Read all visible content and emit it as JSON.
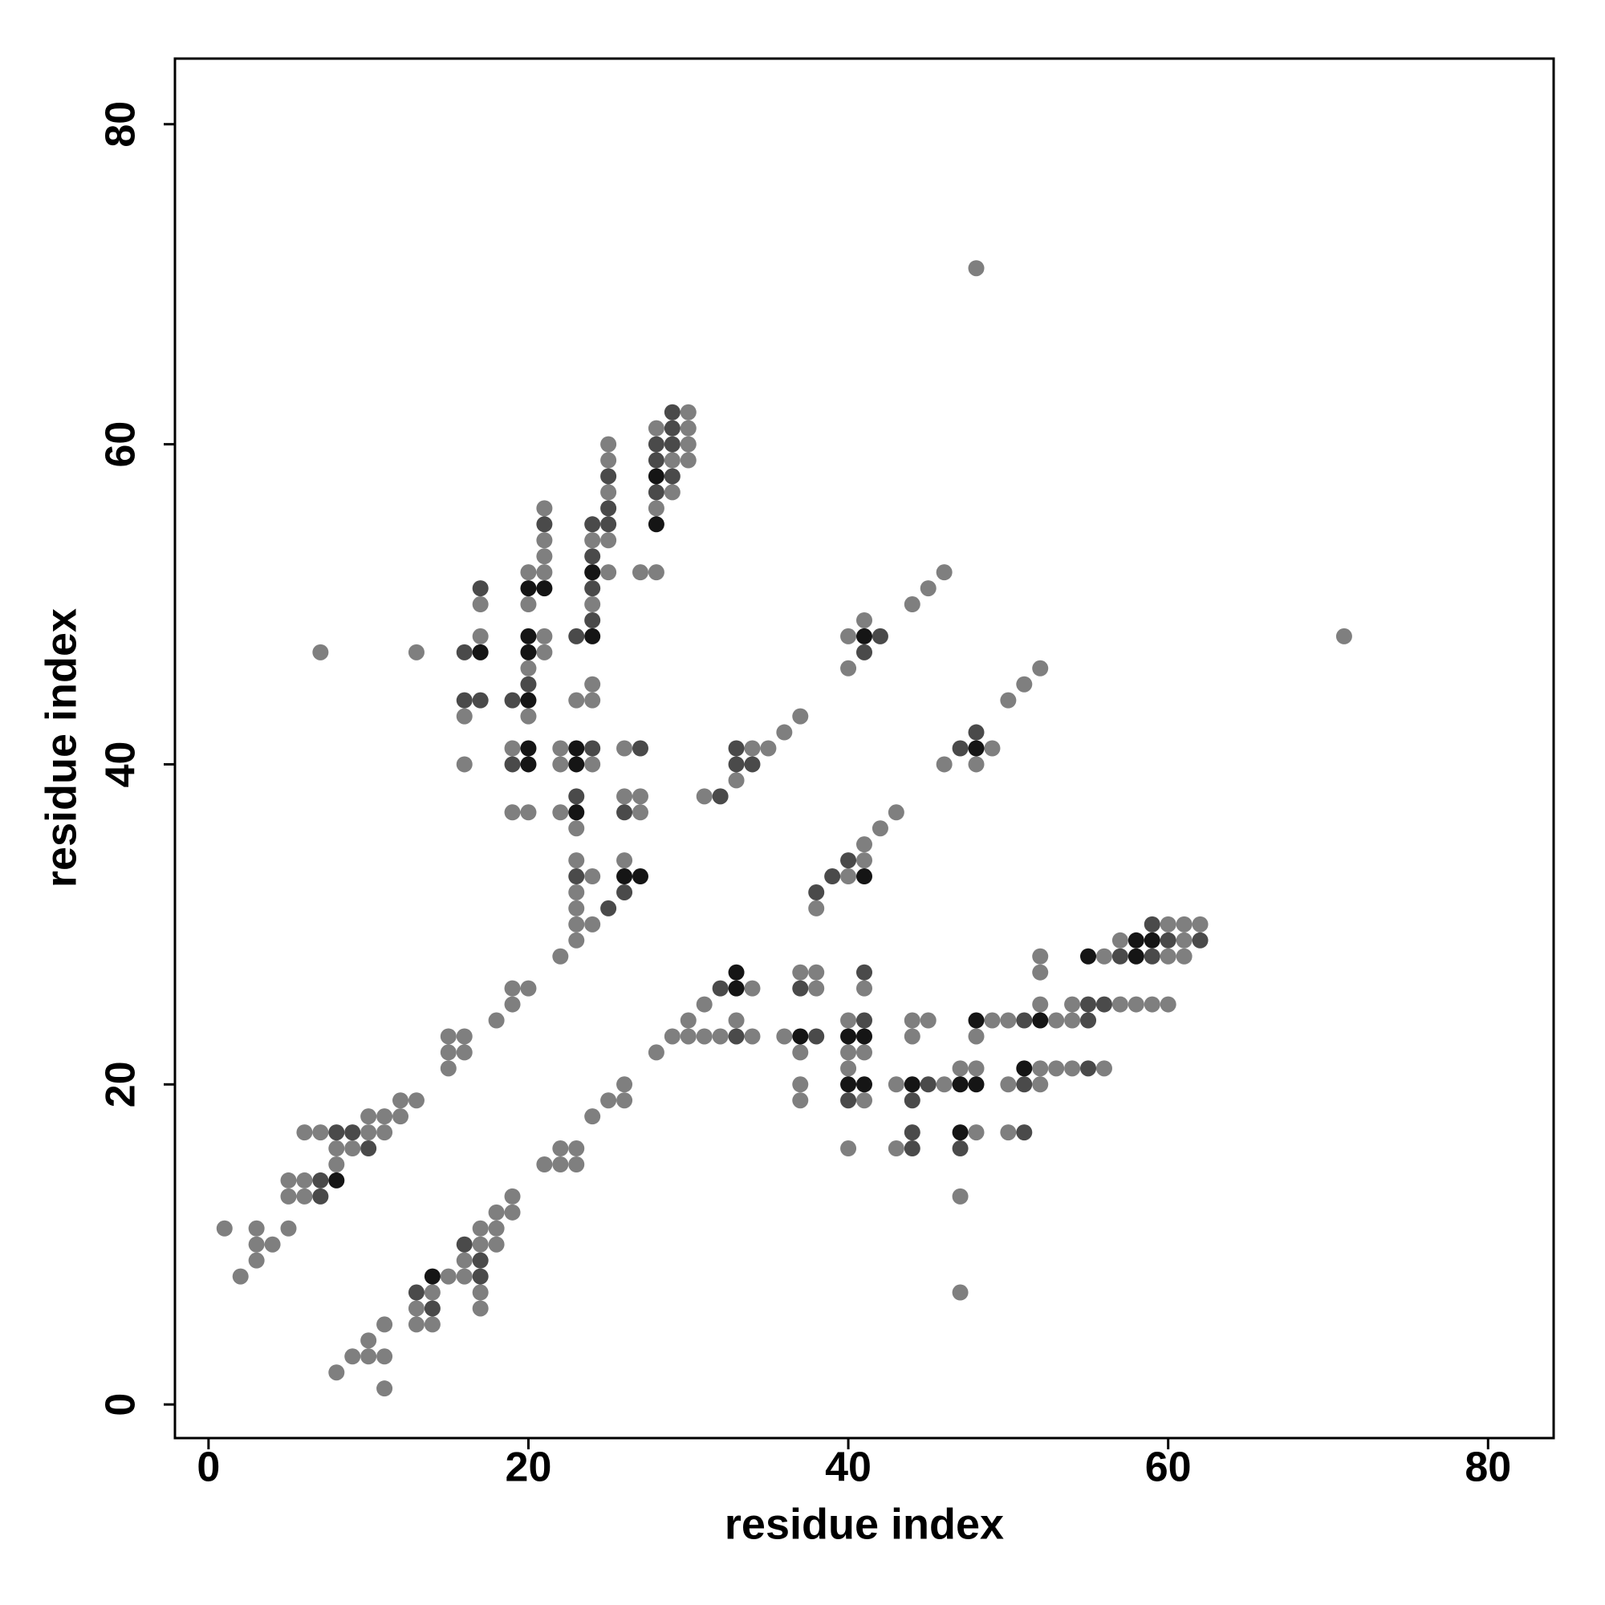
{
  "chart_data": {
    "type": "scatter",
    "xlabel": "residue index",
    "ylabel": "residue index",
    "xlim": [
      -2.1,
      84.1
    ],
    "ylim": [
      -2.1,
      84.1
    ],
    "xticks": [
      0,
      20,
      40,
      60,
      80
    ],
    "yticks": [
      0,
      20,
      40,
      60,
      80
    ],
    "grid": false,
    "series": [
      {
        "color": "#7f7f7f",
        "x": [
          1,
          2,
          3,
          3,
          3,
          4,
          5,
          5,
          5,
          6,
          6,
          6,
          7,
          7,
          8,
          8,
          9,
          10,
          10,
          11,
          11,
          12,
          12,
          13,
          13,
          15,
          15,
          15,
          16,
          16,
          18,
          19,
          19,
          20,
          22,
          23,
          23,
          23,
          23,
          23,
          23,
          23,
          24,
          24,
          24,
          24,
          24,
          24,
          24,
          25,
          25,
          25,
          25,
          25,
          26,
          26,
          26,
          27,
          27,
          27,
          28,
          28,
          28,
          29,
          29,
          30,
          30,
          30,
          30,
          16,
          16,
          17,
          17,
          19,
          19,
          20,
          20,
          20,
          20,
          20,
          21,
          21,
          21,
          21,
          21,
          21,
          22,
          22,
          22,
          31,
          33,
          34,
          35,
          36,
          37,
          40,
          40,
          41,
          44,
          45,
          46,
          38,
          40,
          41,
          41,
          42,
          43,
          46,
          48,
          49,
          50,
          51,
          52,
          48,
          71,
          8,
          9,
          10,
          10,
          11,
          11,
          11,
          13,
          13,
          14,
          14,
          15,
          16,
          16,
          17,
          17,
          17,
          17,
          18,
          18,
          18,
          19,
          19,
          21,
          22,
          22,
          23,
          23,
          24,
          25,
          26,
          26,
          28,
          29,
          30,
          30,
          31,
          31,
          32,
          33,
          34,
          34,
          36,
          37,
          37,
          37,
          37,
          38,
          38,
          40,
          40,
          40,
          40,
          41,
          41,
          41,
          43,
          43,
          44,
          44,
          45,
          46,
          47,
          47,
          47,
          48,
          48,
          48,
          49,
          50,
          50,
          50,
          52,
          52,
          52,
          52,
          52,
          53,
          53,
          54,
          54,
          54,
          56,
          56,
          57,
          57,
          58,
          59,
          60,
          60,
          60,
          61,
          61,
          61,
          62
        ],
        "values": [
          11,
          8,
          11,
          10,
          9,
          10,
          11,
          14,
          13,
          17,
          14,
          13,
          17,
          47,
          16,
          15,
          16,
          18,
          17,
          18,
          17,
          19,
          18,
          19,
          47,
          23,
          22,
          21,
          23,
          22,
          24,
          26,
          25,
          26,
          28,
          29,
          30,
          31,
          32,
          34,
          36,
          44,
          30,
          33,
          40,
          44,
          45,
          50,
          54,
          52,
          54,
          57,
          59,
          60,
          34,
          38,
          41,
          37,
          38,
          52,
          52,
          56,
          61,
          57,
          59,
          59,
          60,
          61,
          62,
          43,
          40,
          50,
          48,
          41,
          37,
          52,
          50,
          46,
          43,
          37,
          56,
          54,
          53,
          52,
          48,
          47,
          41,
          40,
          37,
          38,
          39,
          41,
          41,
          42,
          43,
          48,
          46,
          49,
          50,
          51,
          52,
          31,
          33,
          34,
          35,
          36,
          37,
          40,
          40,
          41,
          44,
          45,
          46,
          71,
          48,
          2,
          3,
          3,
          4,
          3,
          1,
          5,
          6,
          5,
          7,
          5,
          8,
          9,
          8,
          11,
          10,
          7,
          6,
          12,
          11,
          10,
          13,
          12,
          15,
          16,
          15,
          16,
          15,
          18,
          19,
          20,
          19,
          22,
          23,
          24,
          23,
          25,
          23,
          23,
          24,
          26,
          23,
          23,
          27,
          22,
          20,
          19,
          27,
          26,
          24,
          22,
          21,
          16,
          26,
          22,
          19,
          20,
          16,
          24,
          23,
          24,
          20,
          21,
          13,
          7,
          23,
          21,
          17,
          24,
          24,
          20,
          17,
          28,
          27,
          25,
          21,
          20,
          24,
          21,
          25,
          24,
          21,
          28,
          21,
          29,
          25,
          25,
          25,
          30,
          28,
          25,
          30,
          29,
          28,
          30
        ]
      },
      {
        "color": "#4a4a4a",
        "x": [
          7,
          7,
          8,
          9,
          10,
          23,
          23,
          23,
          24,
          24,
          24,
          24,
          24,
          25,
          25,
          25,
          25,
          26,
          26,
          27,
          28,
          28,
          28,
          29,
          29,
          29,
          29,
          16,
          16,
          17,
          17,
          19,
          19,
          20,
          21,
          32,
          33,
          33,
          34,
          41,
          42,
          38,
          39,
          40,
          47,
          48,
          13,
          14,
          16,
          17,
          17,
          32,
          33,
          37,
          38,
          40,
          41,
          41,
          44,
          44,
          44,
          45,
          47,
          51,
          51,
          51,
          55,
          55,
          55,
          56,
          57,
          59,
          59,
          60,
          62
        ],
        "values": [
          14,
          13,
          17,
          17,
          16,
          33,
          38,
          48,
          41,
          49,
          51,
          53,
          55,
          31,
          55,
          56,
          58,
          32,
          37,
          41,
          57,
          59,
          60,
          58,
          60,
          61,
          62,
          47,
          44,
          51,
          44,
          44,
          40,
          45,
          55,
          38,
          41,
          40,
          40,
          47,
          48,
          32,
          33,
          34,
          41,
          42,
          7,
          6,
          10,
          9,
          8,
          26,
          23,
          26,
          23,
          19,
          27,
          24,
          19,
          17,
          16,
          20,
          16,
          24,
          20,
          17,
          25,
          24,
          21,
          25,
          28,
          30,
          28,
          29,
          29
        ]
      },
      {
        "color": "#151515",
        "x": [
          8,
          23,
          23,
          23,
          24,
          24,
          26,
          27,
          28,
          28,
          17,
          20,
          20,
          20,
          20,
          20,
          20,
          21,
          41,
          41,
          48,
          14,
          33,
          33,
          37,
          40,
          40,
          41,
          41,
          44,
          47,
          47,
          48,
          48,
          51,
          52,
          55,
          58,
          58,
          59
        ],
        "values": [
          14,
          37,
          40,
          41,
          48,
          52,
          33,
          33,
          55,
          58,
          47,
          51,
          48,
          47,
          44,
          41,
          40,
          51,
          48,
          33,
          41,
          8,
          27,
          26,
          23,
          23,
          20,
          23,
          20,
          20,
          20,
          17,
          24,
          20,
          21,
          24,
          28,
          29,
          28,
          29
        ]
      }
    ]
  }
}
